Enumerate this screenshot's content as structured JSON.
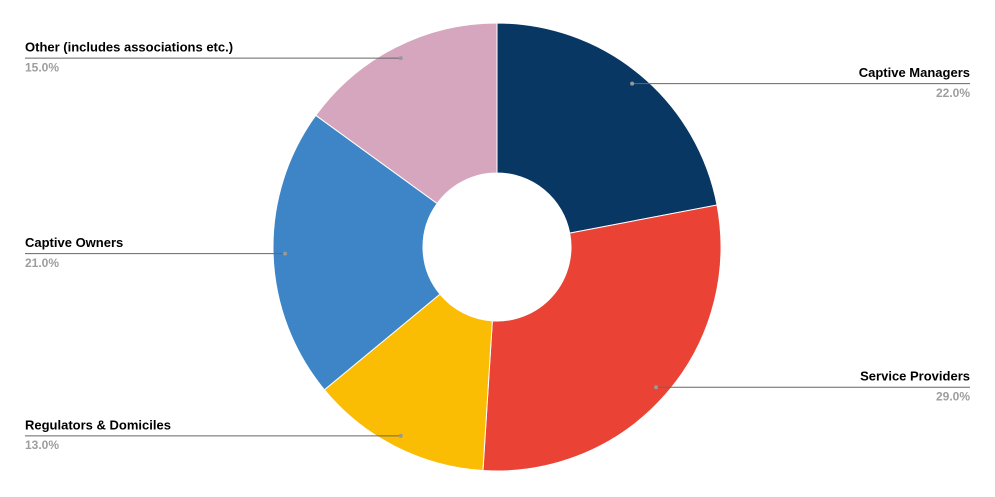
{
  "chart_data": {
    "type": "pie",
    "categories": [
      "Captive Managers",
      "Service Providers",
      "Regulators & Domiciles",
      "Captive Owners",
      "Other (includes associations etc.)"
    ],
    "values": [
      22.0,
      29.0,
      13.0,
      21.0,
      15.0
    ],
    "value_labels": [
      "22.0%",
      "29.0%",
      "13.0%",
      "21.0%",
      "15.0%"
    ],
    "colors": [
      "#083763",
      "#ea4335",
      "#fbbc04",
      "#3d85c6",
      "#d5a6bd"
    ],
    "donut": true
  }
}
